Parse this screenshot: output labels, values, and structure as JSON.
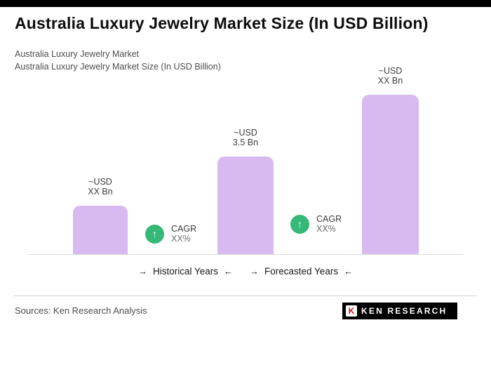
{
  "header": {
    "title": "Australia Luxury Jewelry Market Size (In USD Billion)",
    "subtitle_line1": "Australia Luxury Jewelry Market",
    "subtitle_line2": "Australia Luxury Jewelry Market Size (In USD Billion)"
  },
  "chart_data": {
    "type": "bar",
    "title": "Australia Luxury Jewelry Market Size (In USD Billion)",
    "unit": "USD Billion",
    "categories": [
      "historical-year",
      "base-year",
      "forecast-year"
    ],
    "values": [
      1.75,
      3.5,
      5.7
    ],
    "ylim": [
      0,
      6
    ],
    "grid": false,
    "bar_color": "#d8baf0",
    "badge_color": "#35b878",
    "bar_labels": [
      {
        "line1": "~USD",
        "line2": "XX Bn"
      },
      {
        "line1": "~USD",
        "line2": "3.5 Bn"
      },
      {
        "line1": "~USD",
        "line2": "XX Bn"
      }
    ],
    "cagr_badges": [
      {
        "label": "CAGR",
        "value": "XX%"
      },
      {
        "label": "CAGR",
        "value": "XX%"
      }
    ],
    "period_labels": [
      {
        "text": "Historical Years"
      },
      {
        "text": "Forecasted Years"
      }
    ]
  },
  "icons": {
    "up_arrow": "↑",
    "arrow_right": "→",
    "arrow_left": "←"
  },
  "footer": {
    "sources": "Sources: Ken Research Analysis",
    "logo_k": "K",
    "logo_text": "KEN RESEARCH"
  }
}
